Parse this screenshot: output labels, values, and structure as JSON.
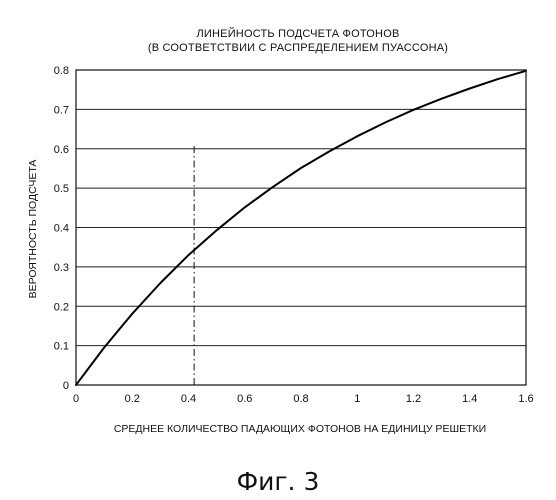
{
  "chart_data": {
    "type": "line",
    "title": "ЛИНЕЙНОСТЬ ПОДСЧЕТА ФОТОНОВ",
    "subtitle": "(В СООТВЕТСТВИИ С РАСПРЕДЕЛЕНИЕМ ПУАССОНА)",
    "xlabel": "СРЕДНЕЕ КОЛИЧЕСТВО ПАДАЮЩИХ ФОТОНОВ НА ЕДИНИЦУ РЕШЕТКИ",
    "ylabel": "ВЕРОЯТНОСТЬ ПОДСЧЕТА",
    "xlim": [
      0,
      1.6
    ],
    "ylim": [
      0,
      0.8
    ],
    "grid": "horizontal",
    "x_ticks": [
      "0",
      "0.2",
      "0.4",
      "0.6",
      "0.8",
      "1",
      "1.2",
      "1.4",
      "1.6"
    ],
    "y_ticks": [
      "0",
      "0.1",
      "0.2",
      "0.3",
      "0.4",
      "0.5",
      "0.6",
      "0.7",
      "0.8"
    ],
    "series": [
      {
        "x": [
          0,
          0.1,
          0.2,
          0.3,
          0.4,
          0.5,
          0.6,
          0.7,
          0.8,
          0.9,
          1.0,
          1.1,
          1.2,
          1.3,
          1.4,
          1.5,
          1.6
        ],
        "values": [
          0,
          0.095,
          0.181,
          0.259,
          0.33,
          0.393,
          0.451,
          0.503,
          0.551,
          0.593,
          0.632,
          0.667,
          0.699,
          0.727,
          0.753,
          0.777,
          0.798
        ]
      }
    ],
    "marker_line": {
      "x": 0.42,
      "y_range": [
        0,
        0.61
      ],
      "style": "dash-dot"
    }
  },
  "caption": "Фиг. 3"
}
